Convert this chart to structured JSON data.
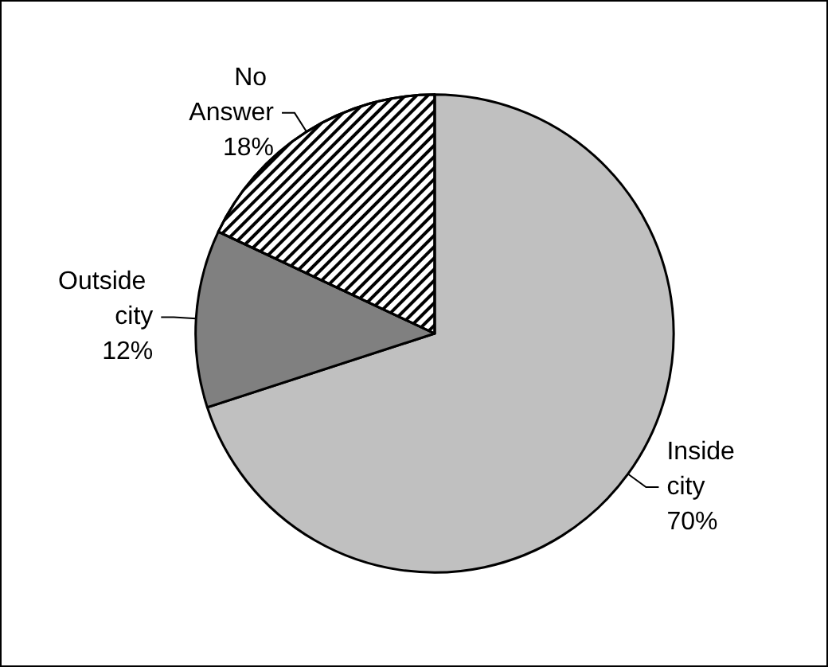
{
  "chart_data": {
    "type": "pie",
    "categories": [
      "Inside city",
      "Outside city",
      "No Answer"
    ],
    "values": [
      70,
      12,
      18
    ],
    "colors": [
      "#c0c0c0",
      "#808080",
      "#ffffff"
    ],
    "value_labels": [
      "70%",
      "12%",
      "18%"
    ]
  }
}
